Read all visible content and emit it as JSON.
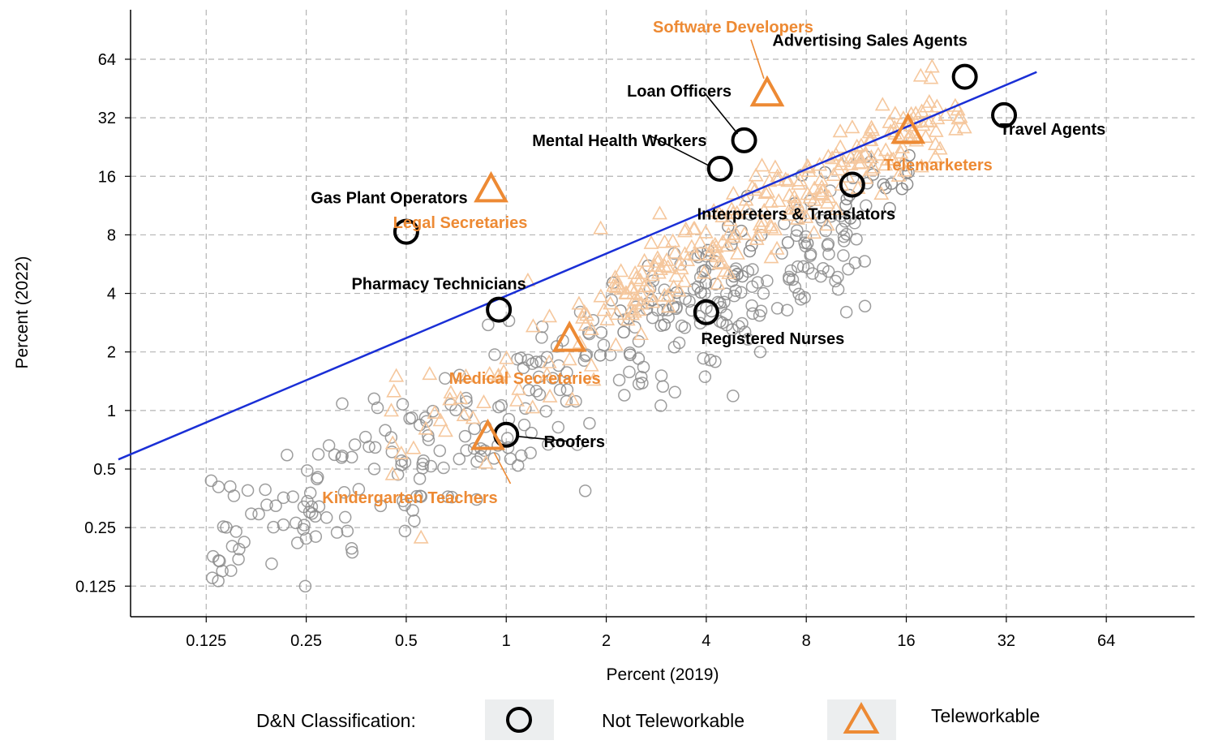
{
  "chart_data": {
    "type": "scatter",
    "x_scale": "log2",
    "y_scale": "log2",
    "xlabel": "Percent (2019)",
    "ylabel": "Percent (2022)",
    "xlim": [
      0.074,
      118
    ],
    "ylim": [
      0.087,
      115
    ],
    "x_ticks": [
      0.125,
      0.25,
      0.5,
      1,
      2,
      4,
      8,
      16,
      32,
      64
    ],
    "x_tick_labels": [
      "0.125",
      "0.25",
      "0.5",
      "1",
      "2",
      "4",
      "8",
      "16",
      "32",
      "64"
    ],
    "y_ticks": [
      0.125,
      0.25,
      0.5,
      1,
      2,
      4,
      8,
      16,
      32,
      64
    ],
    "y_tick_labels": [
      "0.125",
      "0.25",
      "0.5",
      "1",
      "2",
      "4",
      "8",
      "16",
      "32",
      "64"
    ],
    "grid": true,
    "fit_line": {
      "x0": 0.068,
      "y0": 0.56,
      "x1": 39.5,
      "y1": 55
    },
    "colors": {
      "not_teleworkable": "#000000",
      "teleworkable": "#ED8A34",
      "fit_line": "#1A2FD6",
      "background_points_gray": "#8c8c8c",
      "background_points_orange": "#F5C79D",
      "grid": "#b4b4b4"
    },
    "highlighted": [
      {
        "name": "Advertising Sales Agents",
        "x": 24,
        "y": 52,
        "group": "Not Teleworkable",
        "label_anchor": "start"
      },
      {
        "name": "Travel Agents",
        "x": 31.5,
        "y": 33,
        "group": "Not Teleworkable",
        "label_anchor": "start"
      },
      {
        "name": "Loan Officers",
        "x": 5.2,
        "y": 24.5,
        "group": "Not Teleworkable",
        "label_anchor": "end"
      },
      {
        "name": "Mental Health Workers",
        "x": 4.4,
        "y": 17.5,
        "group": "Not Teleworkable",
        "label_anchor": "end"
      },
      {
        "name": "Interpreters & Translators",
        "x": 11,
        "y": 14.5,
        "group": "Not Teleworkable",
        "label_anchor": "start"
      },
      {
        "name": "Gas Plant Operators",
        "x": 0.5,
        "y": 8.3,
        "group": "Not Teleworkable",
        "label_anchor": "end"
      },
      {
        "name": "Pharmacy Technicians",
        "x": 0.95,
        "y": 3.3,
        "group": "Not Teleworkable",
        "label_anchor": "end"
      },
      {
        "name": "Registered Nurses",
        "x": 4.0,
        "y": 3.2,
        "group": "Not Teleworkable",
        "label_anchor": "start"
      },
      {
        "name": "Roofers",
        "x": 1.0,
        "y": 0.75,
        "group": "Not Teleworkable",
        "label_anchor": "start"
      },
      {
        "name": "Software Developers",
        "x": 6.1,
        "y": 42,
        "group": "Teleworkable",
        "label_anchor": "end"
      },
      {
        "name": "Telemarketers",
        "x": 16.2,
        "y": 27,
        "group": "Teleworkable",
        "label_anchor": "start"
      },
      {
        "name": "Legal Secretaries",
        "x": 0.9,
        "y": 13.5,
        "group": "Teleworkable",
        "label_anchor": "start"
      },
      {
        "name": "Medical Secretaries",
        "x": 1.55,
        "y": 2.3,
        "group": "Teleworkable",
        "label_anchor": "start"
      },
      {
        "name": "Kindergarten Teachers",
        "x": 0.88,
        "y": 0.72,
        "group": "Teleworkable",
        "label_anchor": "start"
      }
    ],
    "background_points_note": "approximately 500 unlabeled occupations drawn as small gray circles (Not Teleworkable) and small light-orange triangles (Teleworkable)"
  },
  "legend": {
    "title": "D&N Classification:",
    "items": [
      {
        "label": "Not Teleworkable",
        "symbol": "circle"
      },
      {
        "label": "Teleworkable",
        "symbol": "triangle"
      }
    ]
  }
}
